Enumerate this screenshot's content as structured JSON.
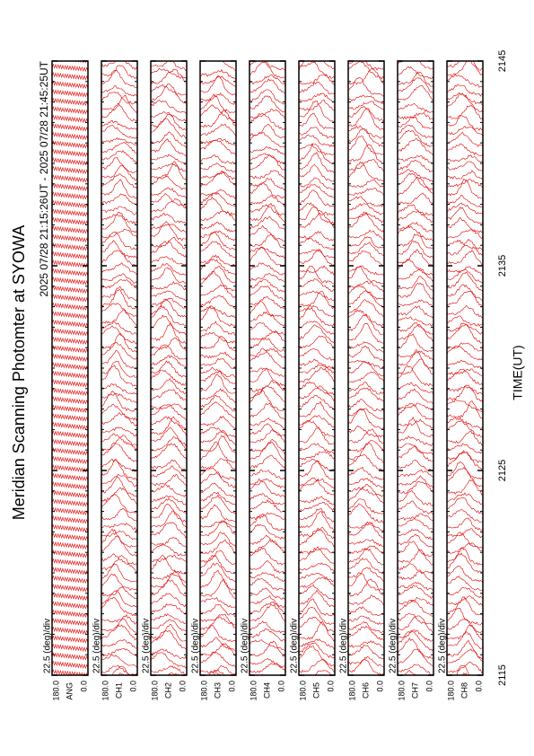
{
  "chart_data": {
    "type": "strip",
    "title": "Meridian Scanning Photomter at SYOWA",
    "subtitle": "2025 07/28 21:15:26UT - 2025 07/28 21:45:25UT",
    "x_label": "TIME(UT)",
    "xlim": [
      2115,
      2145
    ],
    "xticks": [
      2115,
      2125,
      2135,
      2145
    ],
    "ylim": [
      0,
      180
    ],
    "yticks": [
      {
        "value": 0,
        "label": "0.0"
      },
      {
        "value": 180,
        "label": "180.0"
      }
    ],
    "scale_label": "22.5 (deg)/div",
    "color": "#e00000",
    "panels": [
      "ANG",
      "CH1",
      "CH2",
      "CH3",
      "CH4",
      "CH5",
      "CH6",
      "CH7",
      "CH8"
    ]
  }
}
